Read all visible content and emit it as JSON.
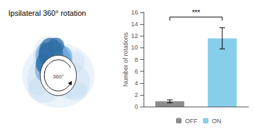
{
  "chart_data": {
    "type": "bar",
    "title": "Ipsilateral 360° rotation",
    "categories": [
      "OFF",
      "ON"
    ],
    "values": [
      0.9,
      11.6
    ],
    "errors": [
      0.25,
      1.8
    ],
    "colors": [
      "#8c8c8c",
      "#87CEEB"
    ],
    "ylabel": "Number of rotations",
    "ylim": [
      0,
      16
    ],
    "yticks": [
      0,
      2,
      4,
      6,
      8,
      10,
      12,
      14,
      16
    ],
    "grid": false,
    "legend": "bottom",
    "tick_labels": "y",
    "annotations": [
      {
        "text": "***",
        "from": "OFF",
        "to": "ON",
        "y": 15.2
      },
      {
        "text": "360°"
      }
    ]
  }
}
